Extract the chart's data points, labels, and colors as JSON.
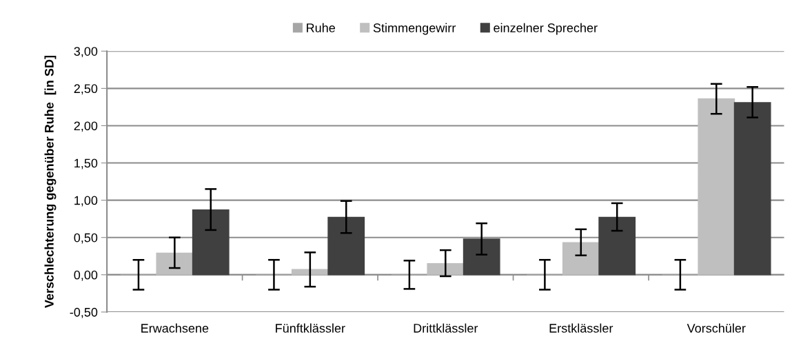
{
  "chart_data": {
    "type": "bar",
    "ylabel": "Verschlechterung gegenüber Ruhe  [in SD]",
    "categories": [
      "Erwachsene",
      "Fünftklässler",
      "Drittklässler",
      "Erstklässler",
      "Vorschüler"
    ],
    "series": [
      {
        "name": "Ruhe",
        "color": "#a6a6a6",
        "values": [
          0,
          0,
          0,
          0,
          0
        ],
        "errors": [
          0.2,
          0.2,
          0.19,
          0.2,
          0.2
        ]
      },
      {
        "name": "Stimmengewirr",
        "color": "#bfbfbf",
        "values": [
          0.29,
          0.07,
          0.15,
          0.43,
          2.36
        ],
        "errors": [
          [
            0.09,
            0.5
          ],
          [
            -0.16,
            0.3
          ],
          [
            -0.02,
            0.33
          ],
          [
            0.26,
            0.61
          ],
          [
            2.16,
            2.56
          ]
        ]
      },
      {
        "name": "einzelner Sprecher",
        "color": "#404040",
        "values": [
          0.87,
          0.77,
          0.48,
          0.77,
          2.31
        ],
        "errors": [
          [
            0.6,
            1.15
          ],
          [
            0.56,
            0.99
          ],
          [
            0.27,
            0.69
          ],
          [
            0.59,
            0.96
          ],
          [
            2.11,
            2.52
          ]
        ]
      }
    ],
    "ylim": [
      -0.5,
      3.0
    ],
    "yticks": [
      {
        "value": -0.5,
        "label": "-0,50"
      },
      {
        "value": 0,
        "label": "0,00"
      },
      {
        "value": 0.5,
        "label": "0,50"
      },
      {
        "value": 1.0,
        "label": "1,00"
      },
      {
        "value": 1.5,
        "label": "1,50"
      },
      {
        "value": 2.0,
        "label": "2,00"
      },
      {
        "value": 2.5,
        "label": "2,50"
      },
      {
        "value": 3.0,
        "label": "3,00"
      }
    ],
    "grid": "y",
    "legend": "top"
  }
}
